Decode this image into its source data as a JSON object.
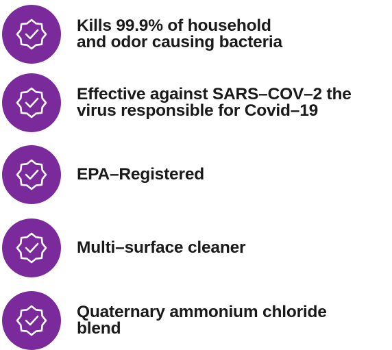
{
  "items": [
    {
      "lines": [
        "Kills 99.9% of household",
        "and odor causing bacteria"
      ]
    },
    {
      "lines": [
        "Effective against SARS–COV–2 the",
        "virus responsible for Covid–19"
      ]
    },
    {
      "lines": [
        "EPA–Registered"
      ]
    },
    {
      "lines": [
        "Multi–surface cleaner"
      ]
    },
    {
      "lines": [
        "Quaternary ammonium chloride",
        "blend"
      ]
    }
  ]
}
